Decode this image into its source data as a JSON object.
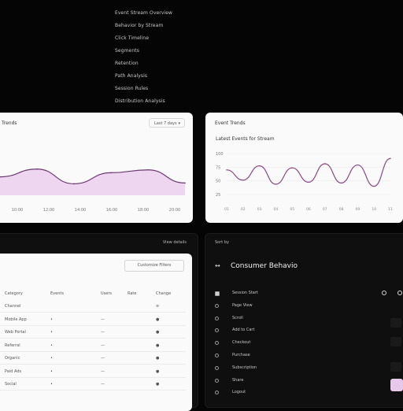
{
  "menu": {
    "items": [
      "Event Stream Overview",
      "Behavior by Stream",
      "Click Timeline",
      "Segments",
      "Retention",
      "Path Analysis",
      "Session Rules",
      "Distribution Analysis"
    ]
  },
  "cards": {
    "trends": {
      "title": "Trends",
      "dropdown_label": "Last 7 days",
      "dropdown_icon": "chevron-down-icon",
      "x_ticks": [
        "10:00",
        "12:00",
        "14:00",
        "16:00",
        "18:00",
        "20:00"
      ]
    },
    "trends2": {
      "title": "Event Trends",
      "subtitle": "Latest Events for Stream",
      "y_ticks": [
        "100",
        "75",
        "50",
        "25"
      ],
      "x_ticks": [
        "01",
        "02",
        "03",
        "04",
        "05",
        "06",
        "07",
        "08",
        "09",
        "10",
        "11"
      ]
    },
    "table": {
      "header_right": "View details",
      "button_label": "Customize Filters",
      "columns": [
        "Category",
        "Events",
        "Users",
        "Rate",
        "Change"
      ],
      "rows": [
        {
          "c0": "Channel",
          "c1": "",
          "c2": "",
          "c3": "",
          "c4": "≡"
        },
        {
          "c0": "Mobile App",
          "c1": "•",
          "c2": "—",
          "c3": "",
          "c4": "●"
        },
        {
          "c0": "Web Portal",
          "c1": "•",
          "c2": "—",
          "c3": "",
          "c4": "●"
        },
        {
          "c0": "Referral",
          "c1": "•",
          "c2": "—",
          "c3": "",
          "c4": "●"
        },
        {
          "c0": "Organic",
          "c1": "•",
          "c2": "—",
          "c3": "",
          "c4": "●"
        },
        {
          "c0": "Paid Ads",
          "c1": "•",
          "c2": "—",
          "c3": "",
          "c4": "●"
        },
        {
          "c0": "Social",
          "c1": "•",
          "c2": "—",
          "c3": "",
          "c4": "●"
        }
      ]
    },
    "behavior": {
      "header": "Sort by",
      "title": "Consumer Behavio",
      "nav_icon": "back-forward-icon",
      "items": [
        "Session Start",
        "Page View",
        "Scroll",
        "Add to Cart",
        "Checkout",
        "Purchase",
        "Subscription",
        "Share",
        "Logout"
      ]
    }
  },
  "colors": {
    "background": "#050505",
    "card_light": "#fafafa",
    "card_dark": "#0f0f10",
    "accent_line": "#6b3a6f",
    "accent_fill": "#e9c9ee"
  },
  "chart_data": [
    {
      "type": "area",
      "x": [
        "10:00",
        "12:00",
        "14:00",
        "16:00",
        "18:00",
        "20:00"
      ],
      "series": [
        {
          "values": [
            45,
            64,
            28,
            55,
            62,
            30
          ]
        }
      ],
      "ylim": [
        0,
        100
      ],
      "grid": false
    },
    {
      "type": "line",
      "x": [
        "01",
        "02",
        "03",
        "04",
        "05",
        "06",
        "07",
        "08",
        "09",
        "10",
        "11"
      ],
      "series": [
        {
          "values": [
            60,
            35,
            70,
            25,
            65,
            30,
            75,
            28,
            72,
            20,
            88
          ]
        }
      ],
      "ylim": [
        0,
        100
      ],
      "grid": true
    }
  ]
}
